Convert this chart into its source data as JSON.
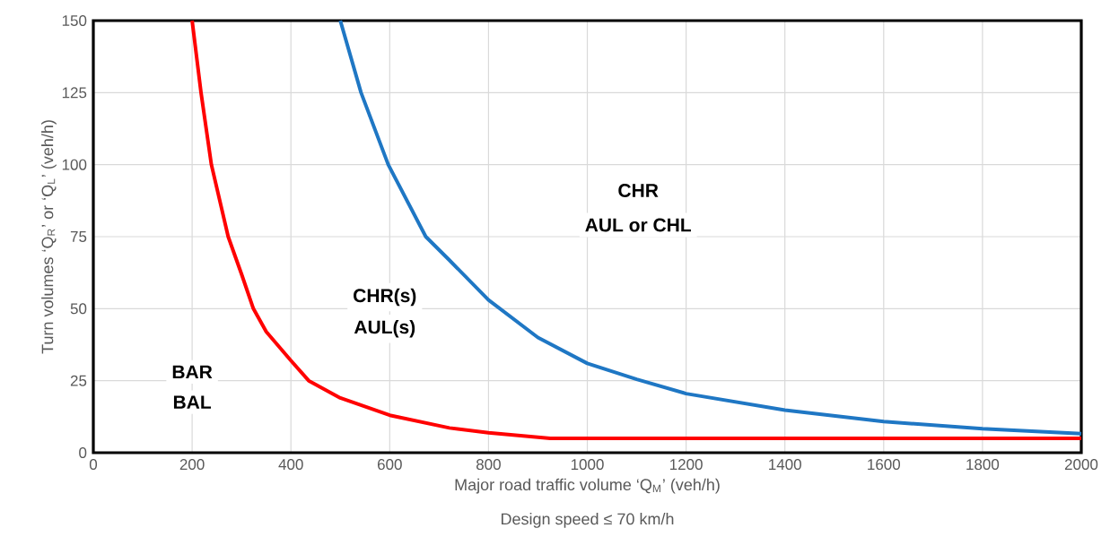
{
  "chart_data": {
    "type": "line",
    "xlabel": "Major road traffic volume ‘Q$_{M}$’ (veh/h)",
    "ylabel": "Turn volumes ‘Q$_{R}$’ or ‘Q$_{L}$’ (veh/h)",
    "series": [
      {
        "color": "#ff0000",
        "x": [
          200,
          218,
          239,
          273,
          300,
          324,
          350,
          400,
          436,
          500,
          600,
          721,
          800,
          925,
          2000
        ],
        "values": [
          150,
          125,
          100,
          75,
          62,
          50,
          42,
          32,
          25,
          19,
          13,
          8.6,
          6.9,
          5,
          5
        ]
      },
      {
        "color": "#1f77c4",
        "x": [
          500,
          542,
          597,
          673,
          720,
          800,
          900,
          1000,
          1100,
          1200,
          1400,
          1600,
          1800,
          2000
        ],
        "values": [
          150,
          125,
          100,
          75,
          67,
          53,
          40,
          31,
          25.5,
          20.5,
          14.8,
          10.8,
          8.3,
          6.6
        ]
      }
    ],
    "xlim": [
      0,
      2000
    ],
    "ylim": [
      0,
      150
    ],
    "xticks": [
      0,
      200,
      400,
      600,
      800,
      1000,
      1200,
      1400,
      1600,
      1800,
      2000
    ],
    "yticks": [
      0,
      25,
      50,
      75,
      100,
      125,
      150
    ],
    "grid": true,
    "marker": "none",
    "line_style": "solid",
    "annotations": [
      "BAR",
      "BAL",
      "CHR(s)",
      "AUL(s)",
      "CHR",
      "AUL or CHL",
      "Design speed ≤ 70 km/h"
    ]
  }
}
